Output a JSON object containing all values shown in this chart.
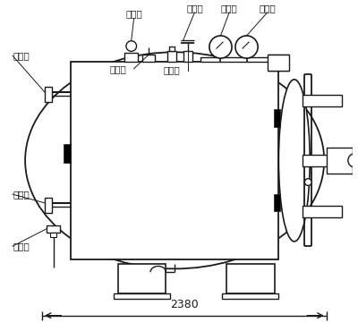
{
  "bg_color": "#ffffff",
  "line_color": "#1a1a1a",
  "labels": {
    "qi_diao_huan": "起吊环",
    "chou_kong_kou": "抽空口",
    "wen_du_biao": "温度表",
    "zhen_kong_biao": "真空表",
    "zheng_qi_jin": "蒸汽进",
    "an_quan_fa": "安全阀",
    "xiao_du_kou": "消毒口",
    "zheng_qi_chu": "蒸汽出",
    "fang_kong_fa": "放空阀",
    "dimension": "2380"
  },
  "figsize": [
    4.0,
    3.7
  ],
  "dpi": 100
}
